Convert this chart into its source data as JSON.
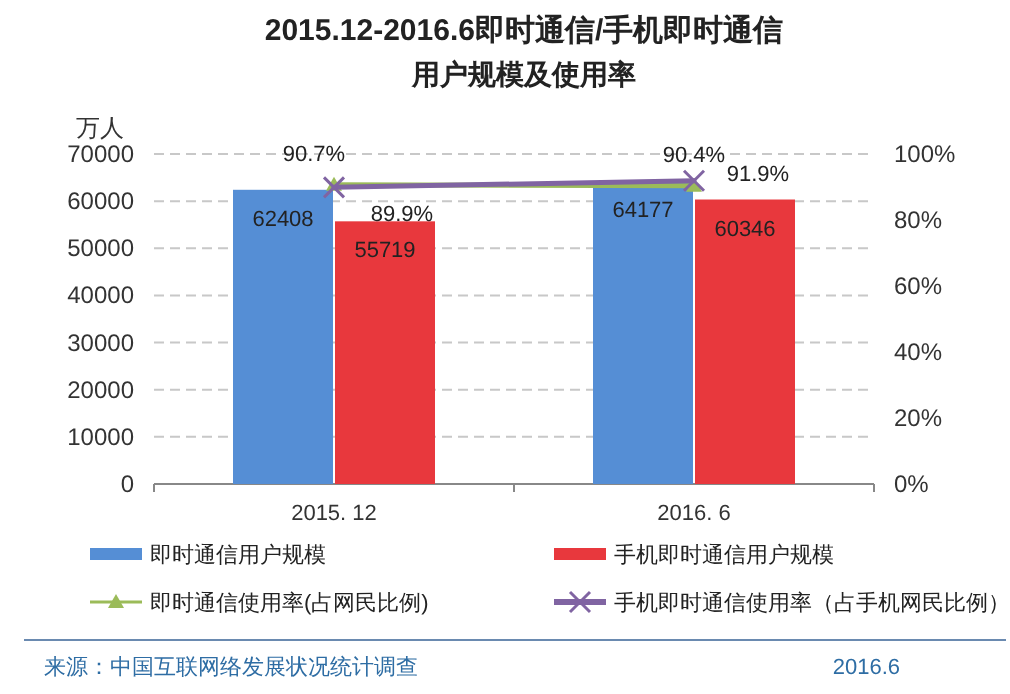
{
  "chart_data": {
    "type": "bar",
    "title": "2015.12-2016.6即时通信/手机即时通信",
    "subtitle": "用户规模及使用率",
    "ylabel": "万人",
    "categories": [
      "2015. 12",
      "2016. 6"
    ],
    "series": [
      {
        "name": "即时通信用户规模",
        "color": "#558ed5",
        "values": [
          62408,
          64177
        ]
      },
      {
        "name": "手机即时通信用户规模",
        "color": "#e8383d",
        "values": [
          55719,
          60346
        ]
      },
      {
        "name": "即时通信使用率(占网民比例)",
        "type": "line",
        "axis": "y2",
        "color": "#9bbb59",
        "marker": "triangle",
        "values": [
          90.7,
          90.4
        ],
        "value_labels": [
          "90.7%",
          "90.4%"
        ]
      },
      {
        "name": "手机即时通信使用率（占手机网民比例）",
        "type": "line",
        "axis": "y2",
        "color": "#8064a2",
        "marker": "cross",
        "values": [
          89.9,
          91.9
        ],
        "value_labels": [
          "89.9%",
          "91.9%"
        ]
      }
    ],
    "ylim": [
      0,
      70000
    ],
    "yticks": [
      0,
      10000,
      20000,
      30000,
      40000,
      50000,
      60000,
      70000
    ],
    "y2lim": [
      0,
      100
    ],
    "y2ticks": [
      {
        "value": 0,
        "label": "0%"
      },
      {
        "value": 20,
        "label": "20%"
      },
      {
        "value": 40,
        "label": "40%"
      },
      {
        "value": 60,
        "label": "60%"
      },
      {
        "value": 80,
        "label": "80%"
      },
      {
        "value": 100,
        "label": "100%"
      }
    ],
    "grid": "y",
    "legend": "bottom",
    "data_labels": true,
    "annotations": [
      "来源：中国互联网络发展状况统计调查",
      "2016.6"
    ]
  }
}
